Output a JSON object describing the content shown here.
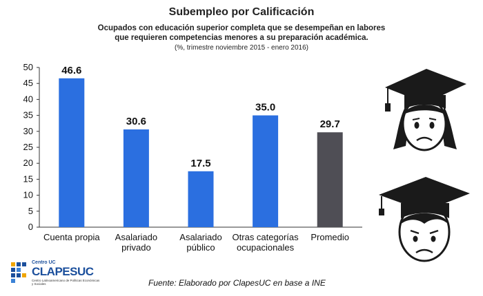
{
  "header": {
    "title": "Subempleo por Calificación",
    "subtitle_line1": "Ocupados con educación superior completa que se desempeñan en labores",
    "subtitle_line2": "que requieren competencias menores a su preparación académica.",
    "note": "(%, trimestre noviembre 2015 - enero 2016)"
  },
  "chart_data": {
    "type": "bar",
    "categories": [
      [
        "Cuenta propia"
      ],
      [
        "Asalariado",
        "privado"
      ],
      [
        "Asalariado",
        "público"
      ],
      [
        "Otras categorías",
        "ocupacionales"
      ],
      [
        "Promedio"
      ]
    ],
    "values": [
      46.6,
      30.6,
      17.5,
      35.0,
      29.7
    ],
    "value_labels": [
      "46.6",
      "30.6",
      "17.5",
      "35.0",
      "29.7"
    ],
    "colors": [
      "#2b6fe0",
      "#2b6fe0",
      "#2b6fe0",
      "#2b6fe0",
      "#4f4e55"
    ],
    "ylim": [
      0,
      50
    ],
    "yticks": [
      "0",
      "5",
      "10",
      "15",
      "20",
      "25",
      "30",
      "35",
      "40",
      "45",
      "50"
    ],
    "grid": false
  },
  "footer": {
    "source": "Fuente: Elaborado por ClapesUC en base a INE",
    "logo_small": "Centro UC",
    "logo_big": "CLAPESUC",
    "logo_tiny": "Centro Latinoamericano de Políticas Económicas y Sociales"
  },
  "icons": [
    "woman-graduate-icon",
    "man-graduate-icon"
  ]
}
